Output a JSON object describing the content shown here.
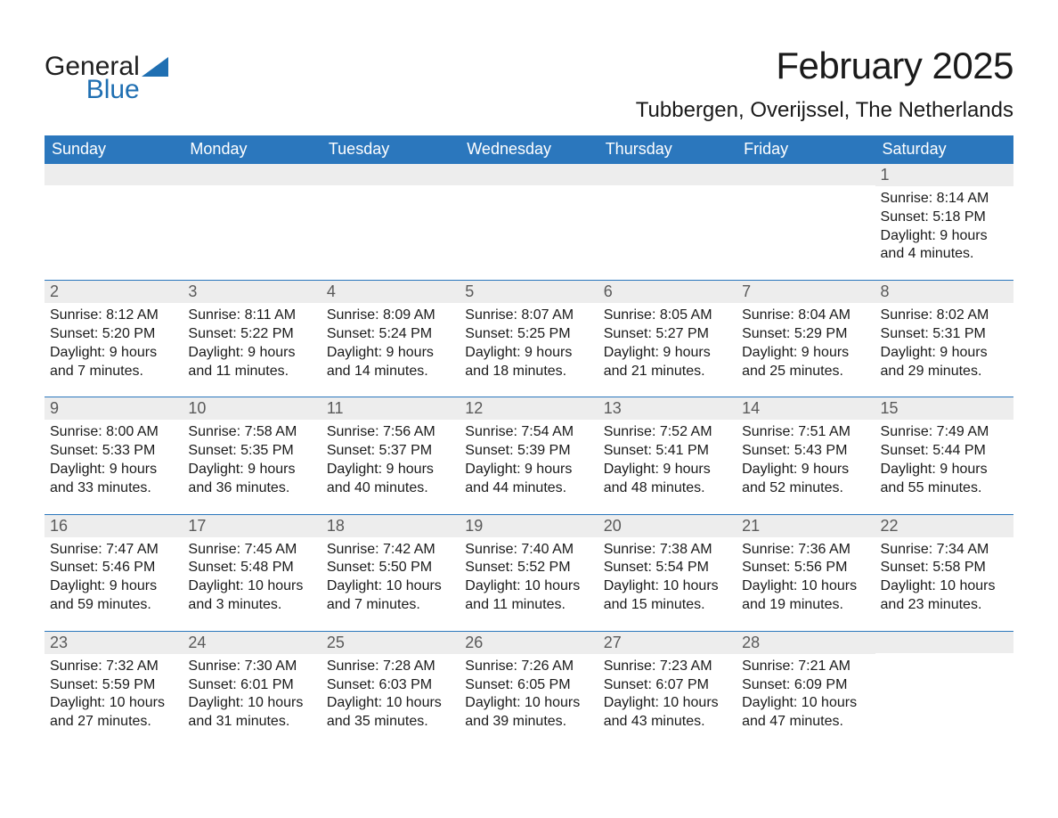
{
  "logo": {
    "text_dark": "General",
    "text_blue": "Blue",
    "icon_color": "#1f6fb2"
  },
  "title": "February 2025",
  "location": "Tubbergen, Overijssel, The Netherlands",
  "colors": {
    "header_bg": "#2b77bd",
    "header_text": "#ffffff",
    "daynum_bg": "#ededed",
    "daynum_text": "#5a5a5a",
    "body_text": "#1a1a1a",
    "week_border": "#2b77bd",
    "page_bg": "#ffffff"
  },
  "fonts": {
    "title_size_pt": 32,
    "location_size_pt": 18,
    "header_size_pt": 14,
    "daynum_size_pt": 14,
    "body_size_pt": 12
  },
  "weekdays": [
    "Sunday",
    "Monday",
    "Tuesday",
    "Wednesday",
    "Thursday",
    "Friday",
    "Saturday"
  ],
  "weeks": [
    [
      null,
      null,
      null,
      null,
      null,
      null,
      {
        "n": "1",
        "sunrise": "Sunrise: 8:14 AM",
        "sunset": "Sunset: 5:18 PM",
        "daylight": "Daylight: 9 hours and 4 minutes."
      }
    ],
    [
      {
        "n": "2",
        "sunrise": "Sunrise: 8:12 AM",
        "sunset": "Sunset: 5:20 PM",
        "daylight": "Daylight: 9 hours and 7 minutes."
      },
      {
        "n": "3",
        "sunrise": "Sunrise: 8:11 AM",
        "sunset": "Sunset: 5:22 PM",
        "daylight": "Daylight: 9 hours and 11 minutes."
      },
      {
        "n": "4",
        "sunrise": "Sunrise: 8:09 AM",
        "sunset": "Sunset: 5:24 PM",
        "daylight": "Daylight: 9 hours and 14 minutes."
      },
      {
        "n": "5",
        "sunrise": "Sunrise: 8:07 AM",
        "sunset": "Sunset: 5:25 PM",
        "daylight": "Daylight: 9 hours and 18 minutes."
      },
      {
        "n": "6",
        "sunrise": "Sunrise: 8:05 AM",
        "sunset": "Sunset: 5:27 PM",
        "daylight": "Daylight: 9 hours and 21 minutes."
      },
      {
        "n": "7",
        "sunrise": "Sunrise: 8:04 AM",
        "sunset": "Sunset: 5:29 PM",
        "daylight": "Daylight: 9 hours and 25 minutes."
      },
      {
        "n": "8",
        "sunrise": "Sunrise: 8:02 AM",
        "sunset": "Sunset: 5:31 PM",
        "daylight": "Daylight: 9 hours and 29 minutes."
      }
    ],
    [
      {
        "n": "9",
        "sunrise": "Sunrise: 8:00 AM",
        "sunset": "Sunset: 5:33 PM",
        "daylight": "Daylight: 9 hours and 33 minutes."
      },
      {
        "n": "10",
        "sunrise": "Sunrise: 7:58 AM",
        "sunset": "Sunset: 5:35 PM",
        "daylight": "Daylight: 9 hours and 36 minutes."
      },
      {
        "n": "11",
        "sunrise": "Sunrise: 7:56 AM",
        "sunset": "Sunset: 5:37 PM",
        "daylight": "Daylight: 9 hours and 40 minutes."
      },
      {
        "n": "12",
        "sunrise": "Sunrise: 7:54 AM",
        "sunset": "Sunset: 5:39 PM",
        "daylight": "Daylight: 9 hours and 44 minutes."
      },
      {
        "n": "13",
        "sunrise": "Sunrise: 7:52 AM",
        "sunset": "Sunset: 5:41 PM",
        "daylight": "Daylight: 9 hours and 48 minutes."
      },
      {
        "n": "14",
        "sunrise": "Sunrise: 7:51 AM",
        "sunset": "Sunset: 5:43 PM",
        "daylight": "Daylight: 9 hours and 52 minutes."
      },
      {
        "n": "15",
        "sunrise": "Sunrise: 7:49 AM",
        "sunset": "Sunset: 5:44 PM",
        "daylight": "Daylight: 9 hours and 55 minutes."
      }
    ],
    [
      {
        "n": "16",
        "sunrise": "Sunrise: 7:47 AM",
        "sunset": "Sunset: 5:46 PM",
        "daylight": "Daylight: 9 hours and 59 minutes."
      },
      {
        "n": "17",
        "sunrise": "Sunrise: 7:45 AM",
        "sunset": "Sunset: 5:48 PM",
        "daylight": "Daylight: 10 hours and 3 minutes."
      },
      {
        "n": "18",
        "sunrise": "Sunrise: 7:42 AM",
        "sunset": "Sunset: 5:50 PM",
        "daylight": "Daylight: 10 hours and 7 minutes."
      },
      {
        "n": "19",
        "sunrise": "Sunrise: 7:40 AM",
        "sunset": "Sunset: 5:52 PM",
        "daylight": "Daylight: 10 hours and 11 minutes."
      },
      {
        "n": "20",
        "sunrise": "Sunrise: 7:38 AM",
        "sunset": "Sunset: 5:54 PM",
        "daylight": "Daylight: 10 hours and 15 minutes."
      },
      {
        "n": "21",
        "sunrise": "Sunrise: 7:36 AM",
        "sunset": "Sunset: 5:56 PM",
        "daylight": "Daylight: 10 hours and 19 minutes."
      },
      {
        "n": "22",
        "sunrise": "Sunrise: 7:34 AM",
        "sunset": "Sunset: 5:58 PM",
        "daylight": "Daylight: 10 hours and 23 minutes."
      }
    ],
    [
      {
        "n": "23",
        "sunrise": "Sunrise: 7:32 AM",
        "sunset": "Sunset: 5:59 PM",
        "daylight": "Daylight: 10 hours and 27 minutes."
      },
      {
        "n": "24",
        "sunrise": "Sunrise: 7:30 AM",
        "sunset": "Sunset: 6:01 PM",
        "daylight": "Daylight: 10 hours and 31 minutes."
      },
      {
        "n": "25",
        "sunrise": "Sunrise: 7:28 AM",
        "sunset": "Sunset: 6:03 PM",
        "daylight": "Daylight: 10 hours and 35 minutes."
      },
      {
        "n": "26",
        "sunrise": "Sunrise: 7:26 AM",
        "sunset": "Sunset: 6:05 PM",
        "daylight": "Daylight: 10 hours and 39 minutes."
      },
      {
        "n": "27",
        "sunrise": "Sunrise: 7:23 AM",
        "sunset": "Sunset: 6:07 PM",
        "daylight": "Daylight: 10 hours and 43 minutes."
      },
      {
        "n": "28",
        "sunrise": "Sunrise: 7:21 AM",
        "sunset": "Sunset: 6:09 PM",
        "daylight": "Daylight: 10 hours and 47 minutes."
      },
      null
    ]
  ]
}
